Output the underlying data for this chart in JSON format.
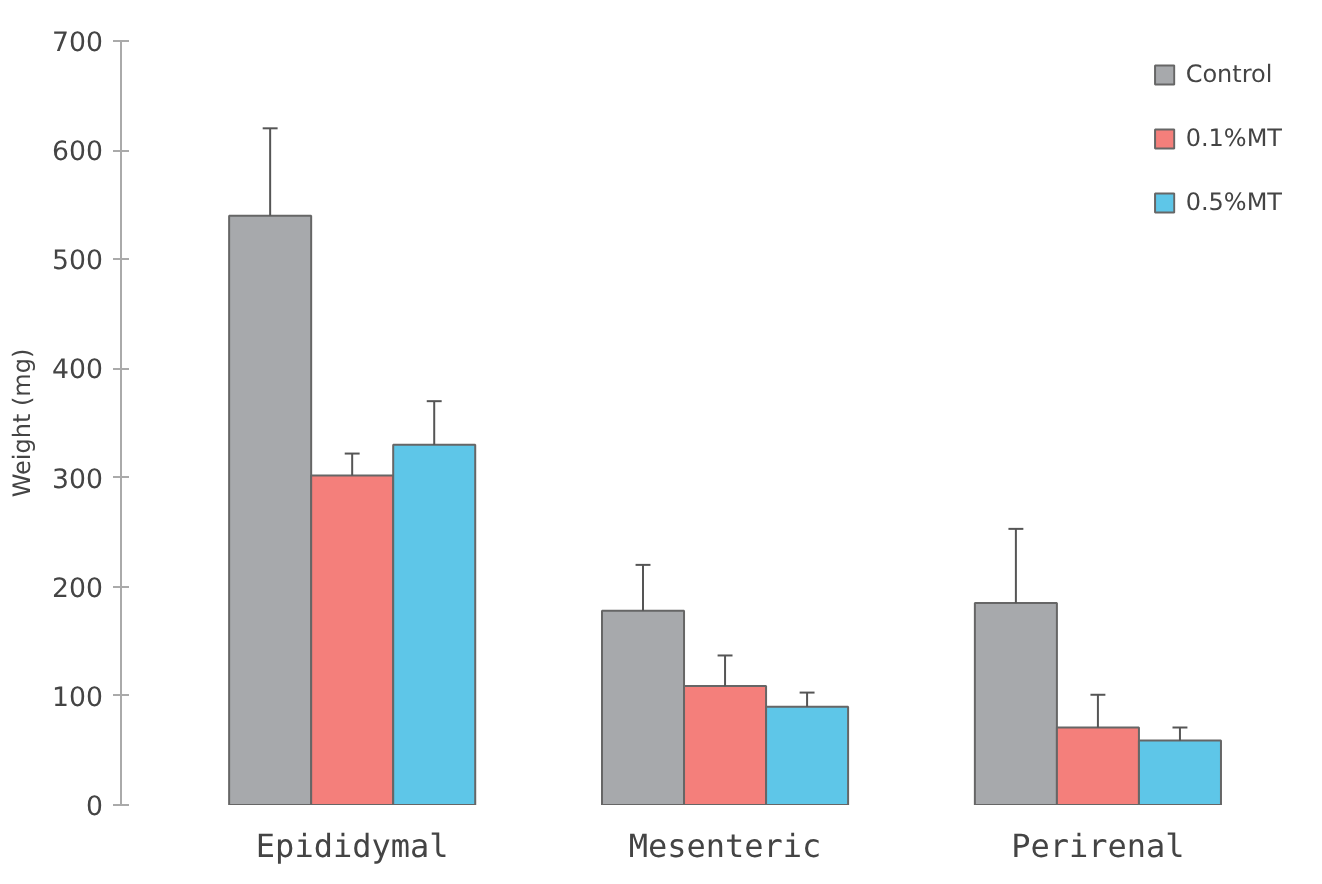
{
  "chart_data": {
    "type": "bar",
    "ylabel": "Weight (mg)",
    "categories": [
      "Epididymal",
      "Mesenteric",
      "Perirenal"
    ],
    "series": [
      {
        "name": "Control",
        "color": "#a7a9ac",
        "values": [
          540,
          178,
          185
        ],
        "errors": [
          [
            540,
            620
          ],
          [
            178,
            220
          ],
          [
            185,
            253
          ]
        ]
      },
      {
        "name": "0.1%MT",
        "color": "#f47f7b",
        "values": [
          302,
          109,
          71
        ],
        "errors": [
          [
            302,
            322
          ],
          [
            109,
            137
          ],
          [
            71,
            101
          ]
        ]
      },
      {
        "name": "0.5%MT",
        "color": "#5ec6e8",
        "values": [
          330,
          90,
          59
        ],
        "errors": [
          [
            330,
            370
          ],
          [
            90,
            103
          ],
          [
            59,
            71
          ]
        ]
      }
    ],
    "ylim": [
      0,
      700
    ],
    "yticks": [
      0,
      100,
      200,
      300,
      400,
      500,
      600,
      700
    ],
    "grid": false,
    "legend": "top right"
  }
}
